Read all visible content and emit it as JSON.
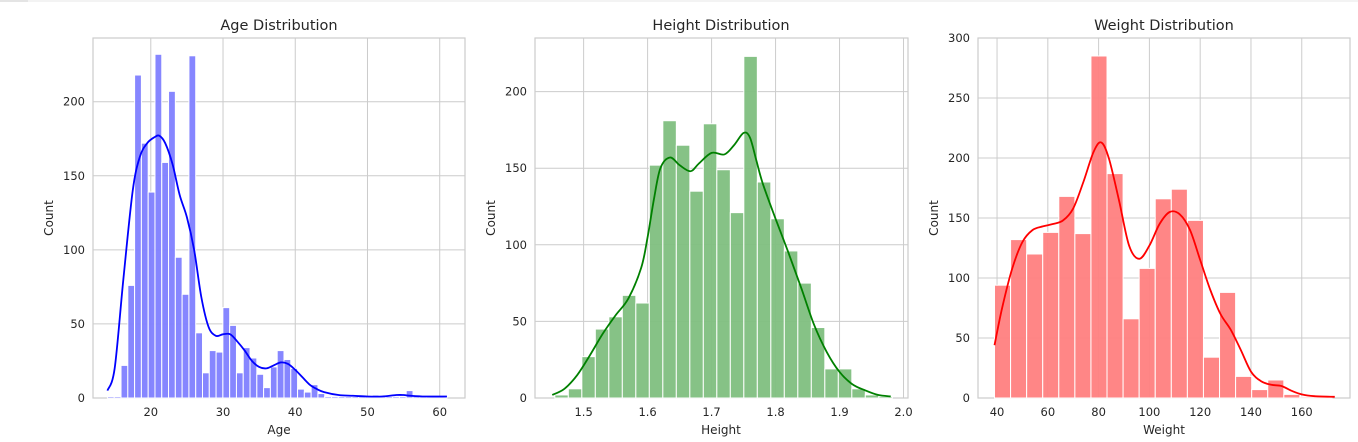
{
  "figure": {
    "background": "#ffffff",
    "grid_color": "#cccccc"
  },
  "chart_data": [
    {
      "type": "bar",
      "title": "Age Distribution",
      "xlabel": "Age",
      "ylabel": "Count",
      "color": "#0000ff",
      "bar_fill": "#8080ff",
      "kde": true,
      "xlim": [
        12,
        63.5
      ],
      "ylim": [
        0,
        243
      ],
      "xticks": [
        20,
        30,
        40,
        50,
        60
      ],
      "yticks": [
        0,
        50,
        100,
        150,
        200
      ],
      "grid": true,
      "bin_width": 0.94,
      "bin_start": 14.0,
      "values": [
        1,
        1,
        22,
        76,
        218,
        172,
        139,
        232,
        159,
        207,
        95,
        70,
        231,
        44,
        17,
        32,
        31,
        61,
        49,
        17,
        34,
        27,
        16,
        7,
        21,
        32,
        26,
        20,
        6,
        4,
        9,
        3,
        1,
        1,
        1,
        1,
        1,
        1,
        1,
        2,
        1,
        1,
        1,
        1,
        5,
        2,
        1,
        1,
        1,
        1
      ],
      "kde_points": [
        [
          14,
          5
        ],
        [
          15,
          20
        ],
        [
          16.2,
          80
        ],
        [
          17.5,
          140
        ],
        [
          18.5,
          163
        ],
        [
          19.5,
          172
        ],
        [
          20.5,
          176
        ],
        [
          21.2,
          177
        ],
        [
          22,
          172
        ],
        [
          23,
          158
        ],
        [
          24,
          137
        ],
        [
          25,
          122
        ],
        [
          26,
          100
        ],
        [
          27,
          68
        ],
        [
          28,
          48
        ],
        [
          29,
          42
        ],
        [
          30,
          43
        ],
        [
          31,
          43
        ],
        [
          32,
          38
        ],
        [
          33,
          32
        ],
        [
          34,
          25
        ],
        [
          35,
          21
        ],
        [
          36,
          20
        ],
        [
          37,
          22
        ],
        [
          38,
          24
        ],
        [
          39,
          23
        ],
        [
          40,
          19
        ],
        [
          41,
          14
        ],
        [
          42,
          9
        ],
        [
          43,
          6
        ],
        [
          44,
          4
        ],
        [
          46,
          2
        ],
        [
          48,
          1.5
        ],
        [
          50,
          1
        ],
        [
          52,
          1
        ],
        [
          54,
          2
        ],
        [
          55,
          2
        ],
        [
          56,
          1.5
        ],
        [
          58,
          1
        ],
        [
          61,
          1
        ]
      ]
    },
    {
      "type": "bar",
      "title": "Height Distribution",
      "xlabel": "Height",
      "ylabel": "Count",
      "color": "#008000",
      "bar_fill": "#7fbf7f",
      "kde": true,
      "xlim": [
        1.424,
        2.007
      ],
      "ylim": [
        0,
        235
      ],
      "xticks": [
        1.5,
        1.6,
        1.7,
        1.8,
        1.9,
        2.0
      ],
      "yticks": [
        0,
        50,
        100,
        150,
        200
      ],
      "grid": true,
      "bin_width": 0.0211,
      "bin_start": 1.455,
      "values": [
        2,
        6,
        27,
        45,
        53,
        67,
        62,
        152,
        181,
        165,
        135,
        179,
        149,
        121,
        223,
        141,
        117,
        96,
        75,
        46,
        19,
        19,
        6,
        2,
        1
      ],
      "kde_points": [
        [
          1.451,
          2
        ],
        [
          1.47,
          6
        ],
        [
          1.49,
          15
        ],
        [
          1.51,
          28
        ],
        [
          1.53,
          42
        ],
        [
          1.55,
          54
        ],
        [
          1.57,
          65
        ],
        [
          1.59,
          85
        ],
        [
          1.6,
          105
        ],
        [
          1.61,
          130
        ],
        [
          1.62,
          150
        ],
        [
          1.635,
          157
        ],
        [
          1.65,
          152
        ],
        [
          1.667,
          148
        ],
        [
          1.68,
          153
        ],
        [
          1.7,
          160
        ],
        [
          1.72,
          159
        ],
        [
          1.735,
          165
        ],
        [
          1.75,
          173
        ],
        [
          1.76,
          170
        ],
        [
          1.77,
          155
        ],
        [
          1.78,
          140
        ],
        [
          1.8,
          117
        ],
        [
          1.82,
          95
        ],
        [
          1.84,
          72
        ],
        [
          1.86,
          48
        ],
        [
          1.88,
          30
        ],
        [
          1.9,
          17
        ],
        [
          1.92,
          9
        ],
        [
          1.94,
          5
        ],
        [
          1.96,
          2
        ],
        [
          1.98,
          1
        ]
      ]
    },
    {
      "type": "bar",
      "title": "Weight Distribution",
      "xlabel": "Weight",
      "ylabel": "Count",
      "color": "#ff0000",
      "bar_fill": "#ff7f7f",
      "kde": true,
      "xlim": [
        32.5,
        179
      ],
      "ylim": [
        0,
        300
      ],
      "xticks": [
        40,
        60,
        80,
        100,
        120,
        140,
        160
      ],
      "yticks": [
        0,
        50,
        100,
        150,
        200,
        250,
        300
      ],
      "grid": true,
      "bin_width": 6.33,
      "bin_start": 39,
      "values": [
        94,
        132,
        120,
        138,
        168,
        137,
        285,
        187,
        66,
        108,
        166,
        174,
        148,
        34,
        88,
        18,
        7,
        15,
        3,
        1,
        1
      ],
      "kde_points": [
        [
          39,
          44
        ],
        [
          42,
          75
        ],
        [
          46,
          108
        ],
        [
          50,
          130
        ],
        [
          54,
          140
        ],
        [
          58,
          143
        ],
        [
          62,
          145
        ],
        [
          66,
          148
        ],
        [
          70,
          158
        ],
        [
          74,
          180
        ],
        [
          78,
          205
        ],
        [
          81,
          213
        ],
        [
          84,
          200
        ],
        [
          88,
          165
        ],
        [
          92,
          127
        ],
        [
          96,
          116
        ],
        [
          100,
          127
        ],
        [
          104,
          145
        ],
        [
          108,
          155
        ],
        [
          112,
          153
        ],
        [
          116,
          140
        ],
        [
          120,
          115
        ],
        [
          124,
          90
        ],
        [
          128,
          70
        ],
        [
          132,
          57
        ],
        [
          136,
          40
        ],
        [
          140,
          22
        ],
        [
          144,
          14
        ],
        [
          148,
          11
        ],
        [
          152,
          10
        ],
        [
          156,
          6
        ],
        [
          160,
          3
        ],
        [
          165,
          1.5
        ],
        [
          173,
          1
        ]
      ]
    }
  ]
}
